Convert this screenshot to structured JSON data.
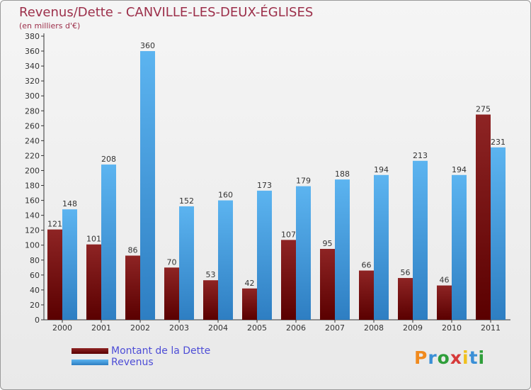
{
  "chart_data": {
    "type": "bar",
    "title": "Revenus/Dette - CANVILLE-LES-DEUX-ÉGLISES",
    "subtitle": "(en milliers d'€)",
    "categories": [
      "2000",
      "2001",
      "2002",
      "2003",
      "2004",
      "2005",
      "2006",
      "2007",
      "2008",
      "2009",
      "2010",
      "2011"
    ],
    "series": [
      {
        "name": "Montant de la Dette",
        "values": [
          121,
          101,
          86,
          70,
          53,
          42,
          107,
          95,
          66,
          56,
          46,
          275
        ],
        "color": "#7a1010"
      },
      {
        "name": "Revenus",
        "values": [
          148,
          208,
          360,
          152,
          160,
          173,
          179,
          188,
          194,
          213,
          194,
          231
        ],
        "color": "#4aa6e6"
      }
    ],
    "ylim": [
      0,
      380
    ],
    "ytick_step": 20,
    "grid": false,
    "legend_position": "bottom-left"
  },
  "logo": {
    "text": "Proxiti",
    "colors": [
      "#f08a1e",
      "#3a8fd6",
      "#2e9e3a",
      "#d63a3a",
      "#f0c01e",
      "#3a8fd6",
      "#2e9e3a"
    ]
  }
}
